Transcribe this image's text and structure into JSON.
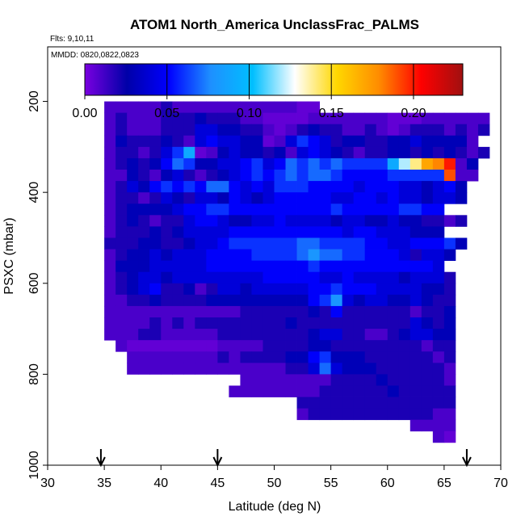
{
  "chart_data": {
    "type": "heatmap",
    "title": "ATOM1 North_America UnclassFrac_PALMS",
    "flights_label": "Flts: 9,10,11",
    "dates_label": "MMDD: 0820,0822,0823",
    "xlabel": "Latitude (deg N)",
    "ylabel": "PSXC (mbar)",
    "xlim": [
      30,
      70
    ],
    "ylim": [
      1000,
      80
    ],
    "y_reversed": true,
    "x_ticks": [
      30,
      35,
      40,
      45,
      50,
      55,
      60,
      65,
      70
    ],
    "x_tick_labels": [
      "30",
      "35",
      "40",
      "45",
      "50",
      "55",
      "60",
      "65",
      "70"
    ],
    "y_ticks": [
      200,
      400,
      600,
      800,
      1000
    ],
    "y_tick_labels": [
      "200",
      "400",
      "600",
      "800",
      "1000"
    ],
    "colorbar": {
      "range": [
        0,
        0.23
      ],
      "ticks": [
        0,
        0.05,
        0.1,
        0.15,
        0.2
      ],
      "tick_labels": [
        "0.00",
        "0.05",
        "0.10",
        "0.15",
        "0.20"
      ],
      "colors": [
        "#7a00e0",
        "#0000a8",
        "#0000ff",
        "#1e90ff",
        "#00bfff",
        "#ffffff",
        "#ffd700",
        "#ff8c00",
        "#ff0000",
        "#a01010"
      ]
    },
    "arrows_latitude": [
      34.7,
      45,
      67
    ],
    "cell_lat_width": 1,
    "cell_p_height": 25,
    "rows": [
      {
        "p": 200,
        "lat0": 35,
        "values": [
          0.01,
          0.01,
          0.01,
          0.01,
          0.01,
          0.02,
          0.01,
          0.01,
          0.01,
          0.01,
          0.01,
          0.01,
          0.01,
          0.01,
          0.01,
          0.01,
          0.01,
          0.005,
          0.005
        ]
      },
      {
        "p": 225,
        "lat0": 35,
        "values": [
          0.01,
          0.02,
          0.01,
          0.01,
          0.01,
          0.02,
          0.02,
          0.02,
          0.03,
          0.02,
          0.02,
          0.02,
          0.01,
          0.01,
          0.005,
          0.005,
          0.005,
          0.005,
          0.01,
          0.01,
          0.01,
          0.01,
          0.01,
          0.01,
          0.01,
          0.005,
          0.005,
          0.005,
          0.01,
          0.01,
          0.01,
          0.01,
          0.01,
          0.01
        ]
      },
      {
        "p": 250,
        "lat0": 35,
        "values": [
          0.01,
          0.02,
          0.01,
          0.01,
          0.01,
          0.02,
          0.02,
          0.02,
          0.04,
          0.04,
          0.03,
          0.03,
          0.02,
          0.02,
          0.01,
          0.005,
          0.01,
          0.02,
          0.03,
          0.02,
          0.02,
          0.01,
          0.01,
          0.02,
          0.01,
          0.005,
          0.01,
          0.02,
          0.02,
          0.02,
          0.01,
          0.02,
          0.01,
          0.02
        ]
      },
      {
        "p": 275,
        "lat0": 35,
        "values": [
          0.01,
          0.03,
          0.02,
          0.02,
          0.02,
          0.03,
          0.02,
          0.01,
          0.04,
          0.05,
          0.04,
          0.04,
          0.03,
          0.03,
          0.005,
          0.01,
          0.04,
          0.06,
          0.05,
          0.04,
          0.02,
          0.03,
          0.03,
          0.02,
          0.02,
          0.03,
          0.03,
          0.04,
          0.03,
          0.03,
          0.03,
          0.03,
          0.01
        ]
      },
      {
        "p": 300,
        "lat0": 35,
        "values": [
          0.01,
          0.02,
          0.02,
          0.01,
          0.02,
          0.04,
          0.06,
          0.09,
          0.005,
          0.01,
          0.03,
          0.04,
          0.03,
          0.03,
          0.02,
          0.03,
          0.01,
          0.04,
          0.05,
          0.04,
          0.03,
          0.02,
          0.01,
          0.02,
          0.02,
          0.03,
          0.03,
          0.02,
          0.03,
          0.02,
          0.03,
          0.02,
          0.01,
          0.02
        ]
      },
      {
        "p": 325,
        "lat0": 35,
        "values": [
          0.01,
          0.02,
          0.03,
          0.02,
          0.03,
          0.05,
          0.07,
          0.06,
          0.03,
          0.03,
          0.04,
          0.04,
          0.05,
          0.06,
          0.04,
          0.05,
          0.07,
          0.06,
          0.07,
          0.06,
          0.07,
          0.06,
          0.06,
          0.06,
          0.06,
          0.09,
          0.12,
          0.14,
          0.17,
          0.18,
          0.2,
          0.01,
          0.03
        ]
      },
      {
        "p": 350,
        "lat0": 35,
        "values": [
          0.01,
          0.01,
          0.03,
          0.02,
          0.01,
          0.03,
          0.04,
          0.02,
          0.01,
          0.02,
          0.03,
          0.04,
          0.05,
          0.06,
          0.05,
          0.06,
          0.07,
          0.06,
          0.07,
          0.07,
          0.06,
          0.05,
          0.05,
          0.05,
          0.05,
          0.06,
          0.06,
          0.06,
          0.06,
          0.06,
          0.19,
          0.01,
          0.01
        ]
      },
      {
        "p": 375,
        "lat0": 35,
        "values": [
          0.01,
          0.02,
          0.04,
          0.03,
          0.05,
          0.06,
          0.05,
          0.06,
          0.05,
          0.07,
          0.07,
          0.05,
          0.04,
          0.05,
          0.04,
          0.06,
          0.06,
          0.06,
          0.05,
          0.05,
          0.05,
          0.05,
          0.04,
          0.05,
          0.05,
          0.05,
          0.04,
          0.04,
          0.03,
          0.04,
          0.05,
          0.03
        ]
      },
      {
        "p": 400,
        "lat0": 35,
        "values": [
          0.01,
          0.02,
          0.02,
          0.01,
          0.02,
          0.04,
          0.03,
          0.02,
          0.04,
          0.04,
          0.03,
          0.05,
          0.04,
          0.03,
          0.04,
          0.05,
          0.05,
          0.05,
          0.05,
          0.05,
          0.04,
          0.04,
          0.05,
          0.05,
          0.04,
          0.05,
          0.04,
          0.04,
          0.03,
          0.04,
          0.04,
          0.03
        ]
      },
      {
        "p": 425,
        "lat0": 35,
        "values": [
          0.01,
          0.02,
          0.03,
          0.03,
          0.03,
          0.03,
          0.04,
          0.05,
          0.05,
          0.06,
          0.06,
          0.05,
          0.05,
          0.05,
          0.05,
          0.05,
          0.05,
          0.05,
          0.05,
          0.05,
          0.06,
          0.05,
          0.05,
          0.05,
          0.05,
          0.05,
          0.06,
          0.06,
          0.05,
          0.05
        ]
      },
      {
        "p": 450,
        "lat0": 35,
        "values": [
          0.01,
          0.02,
          0.03,
          0.02,
          0.01,
          0.02,
          0.02,
          0.04,
          0.05,
          0.05,
          0.04,
          0.03,
          0.03,
          0.04,
          0.04,
          0.05,
          0.04,
          0.04,
          0.04,
          0.04,
          0.03,
          0.04,
          0.04,
          0.03,
          0.03,
          0.04,
          0.03,
          0.03,
          0.02,
          0.02,
          0.01,
          0.02
        ]
      },
      {
        "p": 475,
        "lat0": 35,
        "values": [
          0.01,
          0.02,
          0.02,
          0.02,
          0.03,
          0.02,
          0.03,
          0.04,
          0.04,
          0.04,
          0.04,
          0.05,
          0.05,
          0.05,
          0.05,
          0.05,
          0.05,
          0.05,
          0.05,
          0.05,
          0.05,
          0.04,
          0.05,
          0.05,
          0.04,
          0.04,
          0.04,
          0.03,
          0.03,
          0.03
        ]
      },
      {
        "p": 500,
        "lat0": 35,
        "values": [
          0.02,
          0.02,
          0.02,
          0.03,
          0.03,
          0.02,
          0.02,
          0.03,
          0.04,
          0.04,
          0.05,
          0.06,
          0.06,
          0.06,
          0.06,
          0.06,
          0.06,
          0.07,
          0.07,
          0.06,
          0.06,
          0.06,
          0.06,
          0.05,
          0.05,
          0.04,
          0.04,
          0.05,
          0.05,
          0.05,
          0.06,
          0.03
        ]
      },
      {
        "p": 525,
        "lat0": 35,
        "values": [
          0.01,
          0.02,
          0.03,
          0.03,
          0.04,
          0.03,
          0.04,
          0.04,
          0.04,
          0.05,
          0.05,
          0.05,
          0.05,
          0.06,
          0.06,
          0.06,
          0.06,
          0.07,
          0.08,
          0.07,
          0.07,
          0.06,
          0.06,
          0.05,
          0.05,
          0.05,
          0.04,
          0.02,
          0.04,
          0.04,
          0.03
        ]
      },
      {
        "p": 550,
        "lat0": 35,
        "values": [
          0.01,
          0.03,
          0.03,
          0.03,
          0.04,
          0.04,
          0.04,
          0.04,
          0.04,
          0.05,
          0.05,
          0.05,
          0.05,
          0.05,
          0.05,
          0.05,
          0.05,
          0.05,
          0.06,
          0.05,
          0.05,
          0.05,
          0.05,
          0.05,
          0.05,
          0.05,
          0.05,
          0.05,
          0.05,
          0.04
        ]
      },
      {
        "p": 575,
        "lat0": 35,
        "values": [
          0.01,
          0.02,
          0.03,
          0.04,
          0.04,
          0.03,
          0.04,
          0.04,
          0.04,
          0.04,
          0.04,
          0.04,
          0.04,
          0.04,
          0.05,
          0.05,
          0.05,
          0.05,
          0.05,
          0.04,
          0.04,
          0.05,
          0.04,
          0.04,
          0.04,
          0.04,
          0.03,
          0.04,
          0.04,
          0.04,
          0.02
        ]
      },
      {
        "p": 600,
        "lat0": 35,
        "values": [
          0.01,
          0.02,
          0.03,
          0.04,
          0.05,
          0.02,
          0.02,
          0.03,
          0.01,
          0.02,
          0.04,
          0.04,
          0.03,
          0.04,
          0.04,
          0.04,
          0.04,
          0.04,
          0.05,
          0.05,
          0.06,
          0.05,
          0.05,
          0.05,
          0.04,
          0.04,
          0.04,
          0.04,
          0.03,
          0.03,
          0.02
        ]
      },
      {
        "p": 625,
        "lat0": 35,
        "values": [
          0.01,
          0.01,
          0.02,
          0.02,
          0.03,
          0.02,
          0.02,
          0.02,
          0.02,
          0.03,
          0.03,
          0.03,
          0.03,
          0.03,
          0.03,
          0.03,
          0.03,
          0.03,
          0.05,
          0.06,
          0.08,
          0.04,
          0.03,
          0.04,
          0.04,
          0.03,
          0.03,
          0.04,
          0.03,
          0.02,
          0.02
        ]
      },
      {
        "p": 650,
        "lat0": 35,
        "values": [
          0.01,
          0.01,
          0.01,
          0.01,
          0.01,
          0.01,
          0.01,
          0.01,
          0.01,
          0.01,
          0.01,
          0.01,
          0.02,
          0.02,
          0.02,
          0.02,
          0.02,
          0.02,
          0.03,
          0.02,
          0.05,
          0.02,
          0.02,
          0.02,
          0.02,
          0.02,
          0.02,
          0.01,
          0.02,
          0.02,
          0.03
        ]
      },
      {
        "p": 675,
        "lat0": 35,
        "values": [
          0.01,
          0.01,
          0.01,
          0.01,
          0.02,
          0.01,
          0.02,
          0.01,
          0.02,
          0.02,
          0.02,
          0.02,
          0.02,
          0.02,
          0.02,
          0.02,
          0.03,
          0.02,
          0.02,
          0.02,
          0.02,
          0.02,
          0.02,
          0.02,
          0.02,
          0.02,
          0.02,
          0.04,
          0.03,
          0.02,
          0.03
        ]
      },
      {
        "p": 700,
        "lat0": 35,
        "values": [
          0.01,
          0.01,
          0.01,
          0.02,
          0.02,
          0.01,
          0.01,
          0.01,
          0.01,
          0.01,
          0.02,
          0.02,
          0.02,
          0.02,
          0.02,
          0.02,
          0.02,
          0.02,
          0.03,
          0.04,
          0.04,
          0.02,
          0.02,
          0.01,
          0.01,
          0.02,
          0.03,
          0.04,
          0.04,
          0.03,
          0.03
        ]
      },
      {
        "p": 725,
        "lat0": 36,
        "values": [
          0.01,
          0.005,
          0.005,
          0.005,
          0.005,
          0.005,
          0.005,
          0.005,
          0.005,
          0.01,
          0.01,
          0.01,
          0.01,
          0.02,
          0.02,
          0.02,
          0.02,
          0.03,
          0.03,
          0.02,
          0.02,
          0.02,
          0.02,
          0.02,
          0.02,
          0.02,
          0.02,
          0.01,
          0.02,
          0.02
        ]
      },
      {
        "p": 750,
        "lat0": 37,
        "values": [
          0.01,
          0.01,
          0.01,
          0.01,
          0.01,
          0.01,
          0.01,
          0.01,
          0.02,
          0.01,
          0.02,
          0.02,
          0.02,
          0.02,
          0.03,
          0.03,
          0.05,
          0.06,
          0.03,
          0.03,
          0.03,
          0.02,
          0.02,
          0.02,
          0.02,
          0.02,
          0.02,
          0.01,
          0.02
        ]
      },
      {
        "p": 775,
        "lat0": 37,
        "values": [
          0.01,
          0.01,
          0.01,
          0.01,
          0.01,
          0.01,
          0.01,
          0.01,
          0.01,
          0.01,
          0.01,
          0.01,
          0.01,
          0.01,
          0.02,
          0.02,
          0.04,
          0.07,
          0.04,
          0.03,
          0.03,
          0.03,
          0.02,
          0.02,
          0.02,
          0.02,
          0.02,
          0.02,
          0.01
        ]
      },
      {
        "p": 800,
        "lat0": 47,
        "values": [
          0.01,
          0.01,
          0.01,
          0.01,
          0.01,
          0.01,
          0.01,
          0.01,
          0.02,
          0.02,
          0.02,
          0.02,
          0.03,
          0.02,
          0.02,
          0.02,
          0.02,
          0.02,
          0.01
        ]
      },
      {
        "p": 825,
        "lat0": 46,
        "values": [
          0.01,
          0.01,
          0.01,
          0.01,
          0.01,
          0.01,
          0.01,
          0.01,
          0.02,
          0.02,
          0.02,
          0.02,
          0.02,
          0.02,
          0.03,
          0.02,
          0.02,
          0.02,
          0.02,
          0.02
        ]
      },
      {
        "p": 850,
        "lat0": 52,
        "values": [
          0.02,
          0.02,
          0.02,
          0.02,
          0.02,
          0.02,
          0.02,
          0.02,
          0.02,
          0.02,
          0.02,
          0.02,
          0.02,
          0.02
        ]
      },
      {
        "p": 875,
        "lat0": 52,
        "values": [
          0.01,
          0.02,
          0.02,
          0.02,
          0.02,
          0.02,
          0.02,
          0.02,
          0.02,
          0.02,
          0.02,
          0.02,
          0.01,
          0.01
        ]
      },
      {
        "p": 900,
        "lat0": 62,
        "values": [
          0.01,
          0.01,
          0.01,
          0.01
        ]
      },
      {
        "p": 925,
        "lat0": 64,
        "values": [
          0.01,
          0.005
        ]
      }
    ]
  }
}
